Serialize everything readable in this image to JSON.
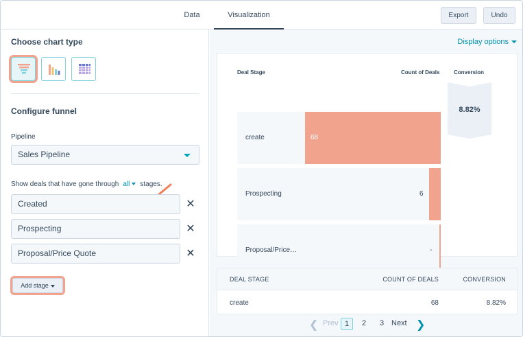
{
  "tabs": {
    "data": "Data",
    "visualization": "Visualization"
  },
  "toolbar": {
    "export": "Export",
    "undo": "Undo"
  },
  "left": {
    "choose_title": "Choose chart type",
    "chart_types": [
      "funnel-icon",
      "bar-chart-icon",
      "table-grid-icon"
    ],
    "configure_title": "Configure funnel",
    "pipeline_label": "Pipeline",
    "pipeline_value": "Sales Pipeline",
    "show_text": "Show deals that have gone through",
    "all_link": "all",
    "stages_word": "stages.",
    "stages": [
      "Created",
      "Prospecting",
      "Proposal/Price Quote"
    ],
    "add_stage": "Add stage"
  },
  "right": {
    "display_options": "Display options"
  },
  "chart_data": {
    "type": "bar",
    "orientation": "horizontal-funnel",
    "headers": {
      "stage": "Deal Stage",
      "count": "Count of Deals",
      "conversion": "Conversion"
    },
    "categories": [
      "create",
      "Prospecting",
      "Proposal/Price…"
    ],
    "values": [
      68,
      6,
      0
    ],
    "value_labels": [
      "68",
      "6",
      "-"
    ],
    "conversion": "8.82%",
    "bar_color": "#f2a38d",
    "xlim": [
      0,
      68
    ]
  },
  "table": {
    "headers": [
      "DEAL STAGE",
      "COUNT OF DEALS",
      "CONVERSION"
    ],
    "rows": [
      [
        "create",
        "68",
        "8.82%"
      ]
    ]
  },
  "pagination": {
    "prev": "Prev",
    "pages": [
      "1",
      "2",
      "3"
    ],
    "next": "Next",
    "current": "1"
  }
}
